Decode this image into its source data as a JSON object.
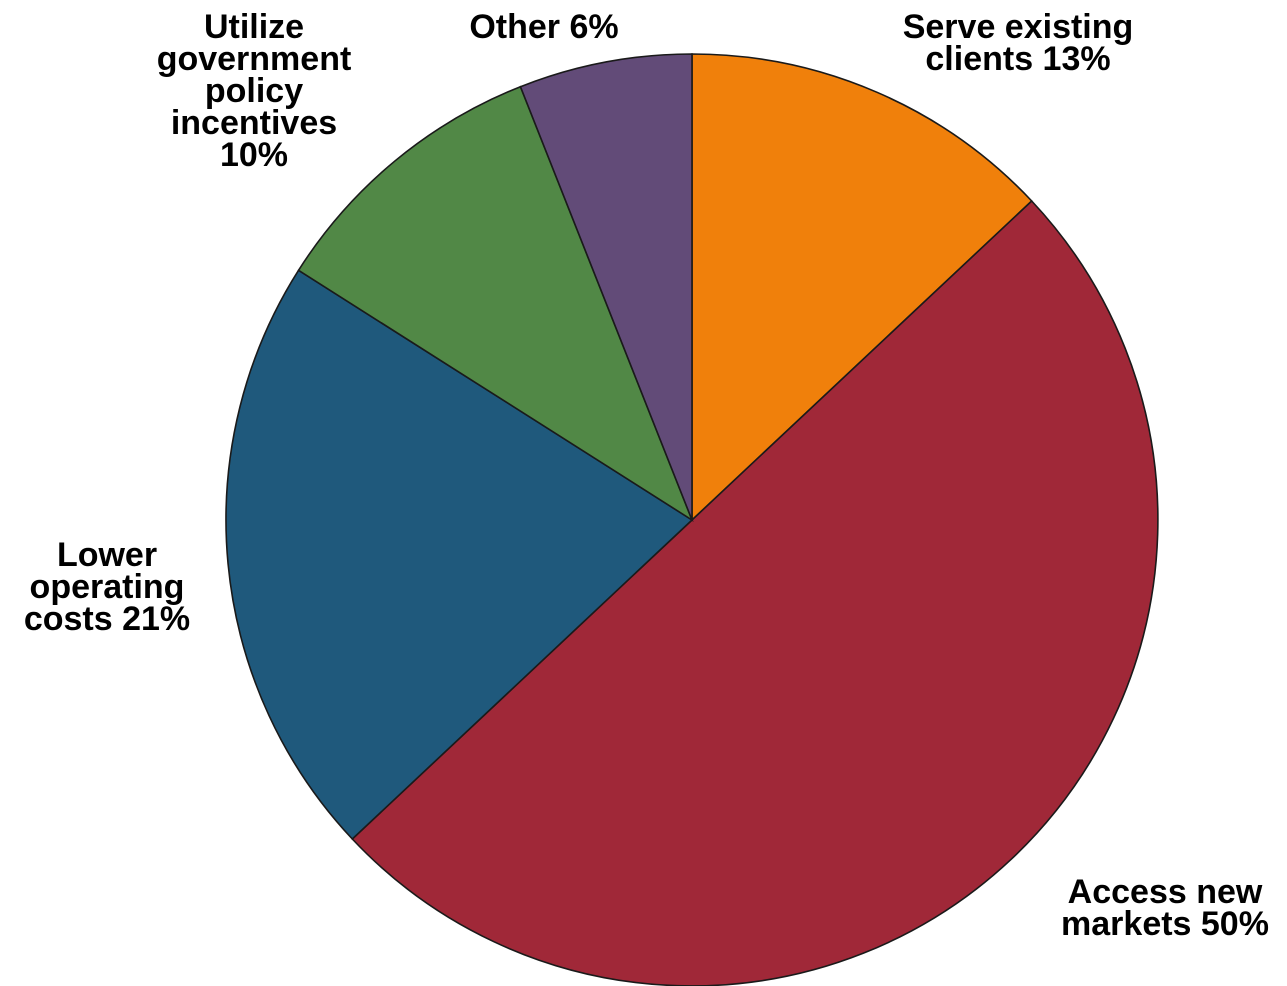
{
  "chart_data": {
    "type": "pie",
    "title": "",
    "slices": [
      {
        "name": "Serve existing clients",
        "value": 13,
        "color": "#F0800B",
        "label_lines": [
          "Serve existing",
          "clients 13%"
        ]
      },
      {
        "name": "Access new markets",
        "value": 50,
        "color": "#A02838",
        "label_lines": [
          "Access new",
          "markets 50%"
        ]
      },
      {
        "name": "Lower operating costs",
        "value": 21,
        "color": "#1F597C",
        "label_lines": [
          "Lower",
          "operating",
          "costs 21%"
        ]
      },
      {
        "name": "Utilize government policy incentives",
        "value": 10,
        "color": "#518846",
        "label_lines": [
          "Utilize",
          "government",
          "policy",
          "incentives",
          "10%"
        ]
      },
      {
        "name": "Other",
        "value": 6,
        "color": "#624B78",
        "label_lines": [
          "Other 6%"
        ]
      }
    ],
    "start_angle": "12 o'clock",
    "direction": "clockwise",
    "legend": "none"
  }
}
